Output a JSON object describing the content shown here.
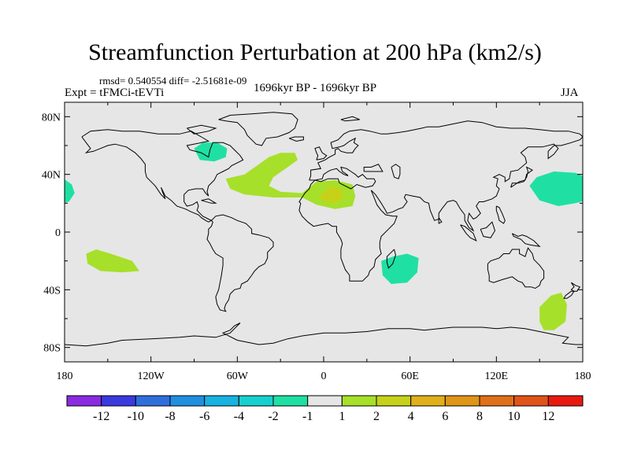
{
  "title": "Streamfunction Perturbation at 200 hPa (km2/s)",
  "stats": "rmsd= 0.540554 diff= -2.51681e-09",
  "experiment": "Expt = tFMCi-tEVTi",
  "period": "1696kyr BP - 1696kyr BP",
  "season": "JJA",
  "colors": {
    "background_field": "#e6e6e6",
    "coast": "#000000"
  },
  "chart_data": {
    "type": "heatmap",
    "projection": "equirectangular",
    "x_ticks": [
      "180",
      "120W",
      "60W",
      "0",
      "60E",
      "120E",
      "180"
    ],
    "x_tick_values": [
      -180,
      -120,
      -60,
      0,
      60,
      120,
      180
    ],
    "y_ticks": [
      "80N",
      "40N",
      "0",
      "40S",
      "80S"
    ],
    "y_tick_values": [
      80,
      40,
      0,
      -40,
      -80
    ],
    "xlim": [
      -180,
      180
    ],
    "ylim": [
      -90,
      90
    ],
    "colorbar": {
      "labels": [
        "-12",
        "-10",
        "-8",
        "-6",
        "-4",
        "-2",
        "-1",
        "1",
        "2",
        "4",
        "6",
        "8",
        "10",
        "12"
      ],
      "colors": [
        "#8a2be2",
        "#3a3adf",
        "#2f6fdc",
        "#1f8fe0",
        "#18b2e0",
        "#16d0d0",
        "#1fe0a2",
        "#e6e6e6",
        "#a6e02a",
        "#c6d21a",
        "#e0b01a",
        "#e09418",
        "#e07018",
        "#e05418",
        "#e81a10"
      ]
    },
    "regions": [
      {
        "name": "NE Atlantic / N Africa positive",
        "level": "1 to 2",
        "color": "#a6e02a",
        "lon": -40,
        "lat": 35
      },
      {
        "name": "N Africa core",
        "level": "2 to 4",
        "color": "#c6d21a",
        "lon": 5,
        "lat": 27
      },
      {
        "name": "Hudson Bay negative",
        "level": "-2 to -1",
        "color": "#1fe0a2",
        "lon": -80,
        "lat": 55
      },
      {
        "name": "NW Pacific negative",
        "level": "-2 to -1",
        "color": "#1fe0a2",
        "lon": 165,
        "lat": 30
      },
      {
        "name": "NE Pacific edge negative",
        "level": "-2 to -1",
        "color": "#1fe0a2",
        "lon": -178,
        "lat": 25
      },
      {
        "name": "S Pacific positive",
        "level": "1 to 2",
        "color": "#a6e02a",
        "lon": -145,
        "lat": -20
      },
      {
        "name": "SW Indian Ocean negative",
        "level": "-2 to -1",
        "color": "#1fe0a2",
        "lon": 55,
        "lat": -25
      },
      {
        "name": "New Zealand positive",
        "level": "1 to 2",
        "color": "#a6e02a",
        "lon": 160,
        "lat": -60
      }
    ]
  }
}
